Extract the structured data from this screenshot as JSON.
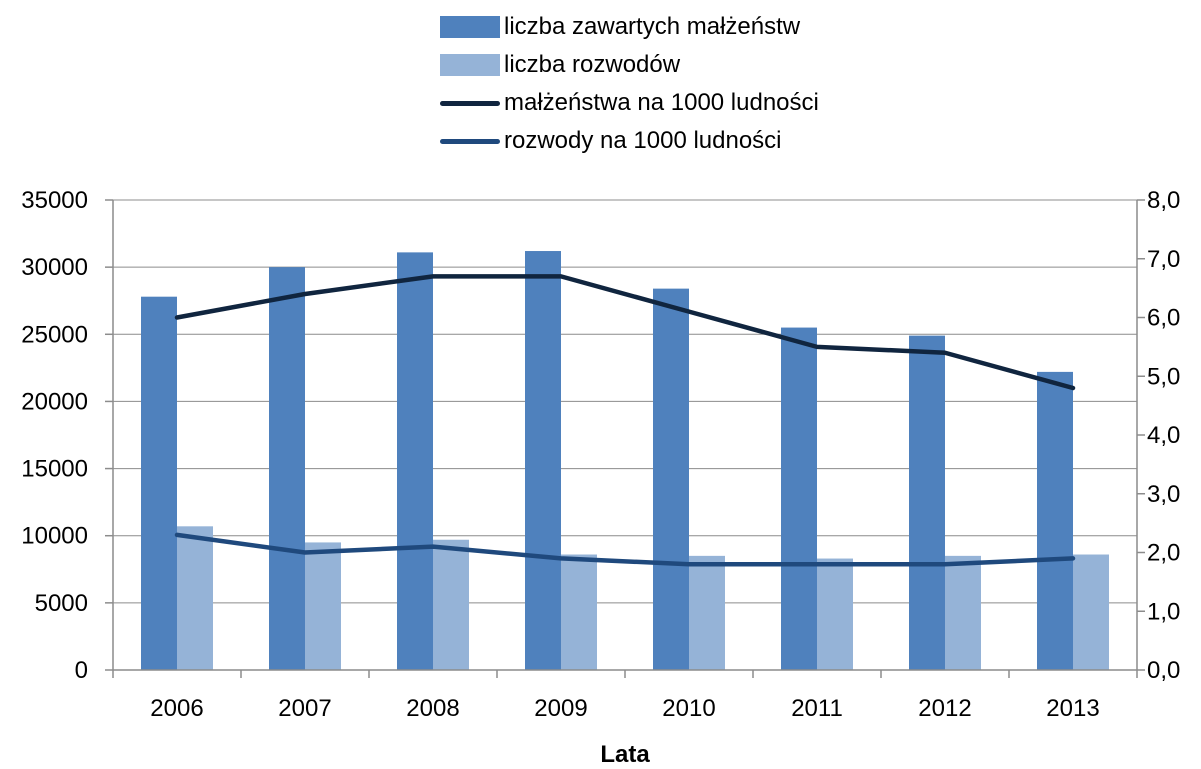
{
  "chart_data": {
    "type": "bar",
    "categories": [
      "2006",
      "2007",
      "2008",
      "2009",
      "2010",
      "2011",
      "2012",
      "2013"
    ],
    "xlabel": "Lata",
    "ylim_left": [
      0,
      35000
    ],
    "ylim_right": [
      0,
      8
    ],
    "yticks_left": [
      "0",
      "5000",
      "10000",
      "15000",
      "20000",
      "25000",
      "30000",
      "35000"
    ],
    "yticks_right": [
      "0,0",
      "1,0",
      "2,0",
      "3,0",
      "4,0",
      "5,0",
      "6,0",
      "7,0",
      "8,0"
    ],
    "grid": true,
    "legend_position": "top-center",
    "series": [
      {
        "name": "liczba zawartych małżeństw",
        "kind": "bar",
        "axis": "left",
        "color": "#4f81bd",
        "values": [
          27800,
          30000,
          31100,
          31200,
          28400,
          25500,
          24900,
          22200
        ]
      },
      {
        "name": "liczba rozwodów",
        "kind": "bar",
        "axis": "left",
        "color": "#95b3d7",
        "values": [
          10700,
          9500,
          9700,
          8600,
          8500,
          8300,
          8500,
          8600
        ]
      },
      {
        "name": "małżeństwa na 1000 ludności",
        "kind": "line",
        "axis": "right",
        "color": "#10253f",
        "values": [
          6.0,
          6.4,
          6.7,
          6.7,
          6.1,
          5.5,
          5.4,
          4.8
        ]
      },
      {
        "name": "rozwody na 1000 ludności",
        "kind": "line",
        "axis": "right",
        "color": "#1f497d",
        "values": [
          2.3,
          2.0,
          2.1,
          1.9,
          1.8,
          1.8,
          1.8,
          1.9
        ]
      }
    ]
  }
}
